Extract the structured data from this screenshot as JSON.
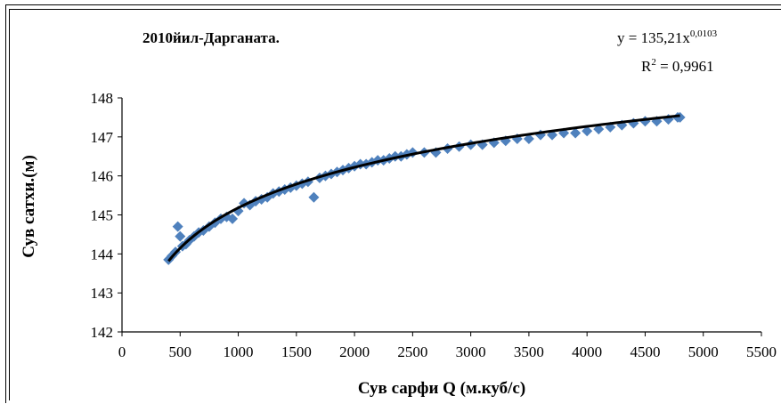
{
  "chart_data": {
    "type": "scatter",
    "title": "2010йил-Дарганата.",
    "xlabel": "Сув сарфи Q (м.куб/с)",
    "ylabel": "Сув сатхи.(м)",
    "xlim": [
      0,
      5500
    ],
    "ylim": [
      142,
      148
    ],
    "x_ticks": [
      "0",
      "500",
      "1000",
      "1500",
      "2000",
      "2500",
      "3000",
      "3500",
      "4000",
      "4500",
      "5000",
      "5500"
    ],
    "y_ticks": [
      "142",
      "143",
      "144",
      "145",
      "146",
      "147",
      "148"
    ],
    "grid": false,
    "legend": "none",
    "marker_color": "#4F81BD",
    "trendline_color": "#000000",
    "trendline": {
      "type": "power",
      "a": 135.21,
      "b": 0.0103,
      "x_range": [
        400,
        4800
      ],
      "equation_text": "y = 135,21x",
      "equation_exponent": "0,0103",
      "r2_prefix": "R",
      "r2_sup": "2",
      "r2_value": " = 0,9961"
    },
    "series": [
      {
        "points": [
          [
            400,
            143.85
          ],
          [
            430,
            143.95
          ],
          [
            460,
            144.05
          ],
          [
            480,
            144.7
          ],
          [
            500,
            144.45
          ],
          [
            520,
            144.2
          ],
          [
            550,
            144.25
          ],
          [
            580,
            144.35
          ],
          [
            620,
            144.45
          ],
          [
            660,
            144.55
          ],
          [
            700,
            144.6
          ],
          [
            750,
            144.7
          ],
          [
            800,
            144.8
          ],
          [
            850,
            144.9
          ],
          [
            900,
            144.95
          ],
          [
            950,
            144.9
          ],
          [
            1000,
            145.1
          ],
          [
            1050,
            145.3
          ],
          [
            1100,
            145.25
          ],
          [
            1150,
            145.35
          ],
          [
            1200,
            145.4
          ],
          [
            1250,
            145.45
          ],
          [
            1300,
            145.55
          ],
          [
            1350,
            145.6
          ],
          [
            1400,
            145.65
          ],
          [
            1450,
            145.7
          ],
          [
            1500,
            145.75
          ],
          [
            1550,
            145.8
          ],
          [
            1600,
            145.85
          ],
          [
            1650,
            145.45
          ],
          [
            1700,
            145.95
          ],
          [
            1750,
            146.0
          ],
          [
            1800,
            146.05
          ],
          [
            1850,
            146.1
          ],
          [
            1900,
            146.15
          ],
          [
            1950,
            146.2
          ],
          [
            2000,
            146.25
          ],
          [
            2050,
            146.3
          ],
          [
            2100,
            146.3
          ],
          [
            2150,
            146.35
          ],
          [
            2200,
            146.4
          ],
          [
            2250,
            146.4
          ],
          [
            2300,
            146.45
          ],
          [
            2350,
            146.5
          ],
          [
            2400,
            146.5
          ],
          [
            2450,
            146.55
          ],
          [
            2500,
            146.6
          ],
          [
            2600,
            146.6
          ],
          [
            2700,
            146.6
          ],
          [
            2800,
            146.7
          ],
          [
            2900,
            146.75
          ],
          [
            3000,
            146.8
          ],
          [
            3100,
            146.8
          ],
          [
            3200,
            146.85
          ],
          [
            3300,
            146.9
          ],
          [
            3400,
            146.95
          ],
          [
            3500,
            146.95
          ],
          [
            3600,
            147.05
          ],
          [
            3700,
            147.05
          ],
          [
            3800,
            147.1
          ],
          [
            3900,
            147.1
          ],
          [
            4000,
            147.15
          ],
          [
            4100,
            147.2
          ],
          [
            4200,
            147.25
          ],
          [
            4300,
            147.3
          ],
          [
            4400,
            147.35
          ],
          [
            4500,
            147.4
          ],
          [
            4600,
            147.4
          ],
          [
            4700,
            147.45
          ],
          [
            4780,
            147.5
          ],
          [
            4800,
            147.5
          ]
        ]
      }
    ]
  }
}
